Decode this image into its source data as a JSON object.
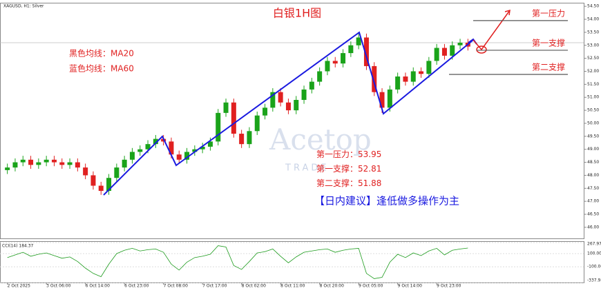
{
  "chart_data": {
    "type": "candlestick",
    "title": "白银1H图",
    "symbol_label": "XAGUSD, H1: Silver",
    "notes": [
      "黑色均线：MA20",
      "蓝色均线：MA60"
    ],
    "watermark": [
      "Acetop",
      "TRADE"
    ],
    "advice": "【日内建议】逢低做多操作为主",
    "separator": "：",
    "levels": [
      {
        "name": "第一压力",
        "value": 53.95,
        "color": "#555"
      },
      {
        "name": "第一支撑",
        "value": 52.81,
        "color": "#555"
      },
      {
        "name": "第二支撑",
        "value": 51.88,
        "color": "#555"
      }
    ],
    "categories": [
      "2 Oct 2025",
      null,
      null,
      null,
      null,
      "3 Oct 06:00",
      null,
      null,
      null,
      null,
      "6 Oct 14:00",
      null,
      null,
      null,
      null,
      "6 Oct 23:00",
      null,
      null,
      null,
      null,
      "7 Oct 08:00",
      null,
      null,
      null,
      null,
      "7 Oct 17:00",
      null,
      null,
      null,
      null,
      "8 Oct 02:00",
      null,
      null,
      null,
      null,
      "8 Oct 11:00",
      null,
      null,
      null,
      null,
      "8 Oct 20:00",
      null,
      null,
      null,
      null,
      "9 Oct 05:00",
      null,
      null,
      null,
      null,
      "9 Oct 14:00",
      null,
      null,
      null,
      null,
      "9 Oct 23:00",
      null,
      null,
      null,
      null
    ],
    "open": [
      48.2,
      48.3,
      48.5,
      48.6,
      48.4,
      48.5,
      48.6,
      48.5,
      48.4,
      48.5,
      48.3,
      48.0,
      47.6,
      47.4,
      47.9,
      48.3,
      48.6,
      48.9,
      49.0,
      49.2,
      49.4,
      49.3,
      48.8,
      48.6,
      48.9,
      49.0,
      49.1,
      49.3,
      50.4,
      50.8,
      49.6,
      49.2,
      49.7,
      50.3,
      50.6,
      51.2,
      50.8,
      50.5,
      50.9,
      51.3,
      51.6,
      52.0,
      52.4,
      52.3,
      52.7,
      53.0,
      53.3,
      52.2,
      51.2,
      50.6,
      51.3,
      51.8,
      51.6,
      52.0,
      51.9,
      52.4,
      52.9,
      52.6,
      53.0,
      53.1
    ],
    "high": [
      48.45,
      48.65,
      48.75,
      48.75,
      48.65,
      48.75,
      48.75,
      48.65,
      48.65,
      48.65,
      48.45,
      48.15,
      47.75,
      48.05,
      48.45,
      48.75,
      49.05,
      49.15,
      49.35,
      49.55,
      49.55,
      49.45,
      48.95,
      49.05,
      49.15,
      49.25,
      49.45,
      50.55,
      50.95,
      50.95,
      49.75,
      49.85,
      50.45,
      50.75,
      51.35,
      51.35,
      50.95,
      51.05,
      51.45,
      51.75,
      52.15,
      52.55,
      52.55,
      52.85,
      53.15,
      53.5,
      53.45,
      52.35,
      51.35,
      51.45,
      51.95,
      51.95,
      52.15,
      52.15,
      52.55,
      53.05,
      53.05,
      53.15,
      53.25,
      53.25
    ],
    "low": [
      48.05,
      48.15,
      48.35,
      48.25,
      48.25,
      48.35,
      48.35,
      48.25,
      48.25,
      48.15,
      47.85,
      47.45,
      47.25,
      47.25,
      47.75,
      48.15,
      48.45,
      48.75,
      48.85,
      49.05,
      49.15,
      48.65,
      48.45,
      48.45,
      48.75,
      48.85,
      48.95,
      49.15,
      50.25,
      49.45,
      49.05,
      49.05,
      49.55,
      50.15,
      50.45,
      50.65,
      50.35,
      50.35,
      50.75,
      51.15,
      51.45,
      51.85,
      52.15,
      52.15,
      52.55,
      52.85,
      52.05,
      51.05,
      50.4,
      50.45,
      51.15,
      51.45,
      51.45,
      51.75,
      51.75,
      52.25,
      52.45,
      52.45,
      52.85,
      52.8
    ],
    "close": [
      48.3,
      48.5,
      48.6,
      48.4,
      48.5,
      48.6,
      48.5,
      48.4,
      48.5,
      48.3,
      48.0,
      47.6,
      47.4,
      47.9,
      48.3,
      48.6,
      48.9,
      49.0,
      49.2,
      49.4,
      49.3,
      48.8,
      48.6,
      48.9,
      49.0,
      49.1,
      49.3,
      50.4,
      50.8,
      49.6,
      49.2,
      49.7,
      50.3,
      50.6,
      51.2,
      50.8,
      50.5,
      50.9,
      51.3,
      51.6,
      52.0,
      52.4,
      52.3,
      52.7,
      53.0,
      53.3,
      52.2,
      51.2,
      50.6,
      51.3,
      51.8,
      51.6,
      52.0,
      51.9,
      52.4,
      52.9,
      52.6,
      53.0,
      53.1,
      52.95
    ],
    "up_color": "#1aa31a",
    "down_color": "#e02020",
    "ylim": [
      45.6,
      54.61
    ],
    "yticks": [
      {
        "value": 46,
        "label": "46.00"
      },
      {
        "value": 46.5,
        "label": "46.50"
      },
      {
        "value": 47,
        "label": "47.00"
      },
      {
        "value": 47.5,
        "label": "47.50"
      },
      {
        "value": 48,
        "label": "48.00"
      },
      {
        "value": 48.5,
        "label": "48.50"
      },
      {
        "value": 49,
        "label": "49.00"
      },
      {
        "value": 49.5,
        "label": "49.50"
      },
      {
        "value": 50,
        "label": "50.00"
      },
      {
        "value": 50.5,
        "label": "50.50"
      },
      {
        "value": 51,
        "label": "51.00"
      },
      {
        "value": 51.5,
        "label": "51.50"
      },
      {
        "value": 52,
        "label": "52.00"
      },
      {
        "value": 52.5,
        "label": "52.50"
      },
      {
        "value": 53,
        "label": "53.00"
      },
      {
        "value": 53.5,
        "label": "53.50"
      },
      {
        "value": 54,
        "label": "54.00"
      },
      {
        "value": 54.5,
        "label": "54.50"
      }
    ],
    "cci": {
      "name": "CCI(14) 184.37",
      "color": "#1a9a1a",
      "values": [
        40,
        80,
        120,
        60,
        90,
        110,
        70,
        30,
        50,
        -20,
        -120,
        -200,
        -250,
        -60,
        100,
        150,
        180,
        140,
        160,
        170,
        120,
        -60,
        -150,
        -30,
        40,
        60,
        90,
        220,
        200,
        -80,
        -140,
        -20,
        110,
        130,
        170,
        60,
        -40,
        50,
        120,
        140,
        160,
        170,
        120,
        150,
        170,
        180,
        -200,
        -280,
        -260,
        -30,
        90,
        40,
        110,
        70,
        140,
        180,
        80,
        150,
        170,
        184.37
      ],
      "ylim": [
        -337.95,
        267.97
      ],
      "yticks": [
        {
          "value": 267.97,
          "label": "267.97"
        },
        {
          "value": 100,
          "label": "100.00"
        },
        {
          "value": -100,
          "label": "-100.00"
        },
        {
          "value": -337.95,
          "label": "-337.95"
        }
      ]
    }
  }
}
